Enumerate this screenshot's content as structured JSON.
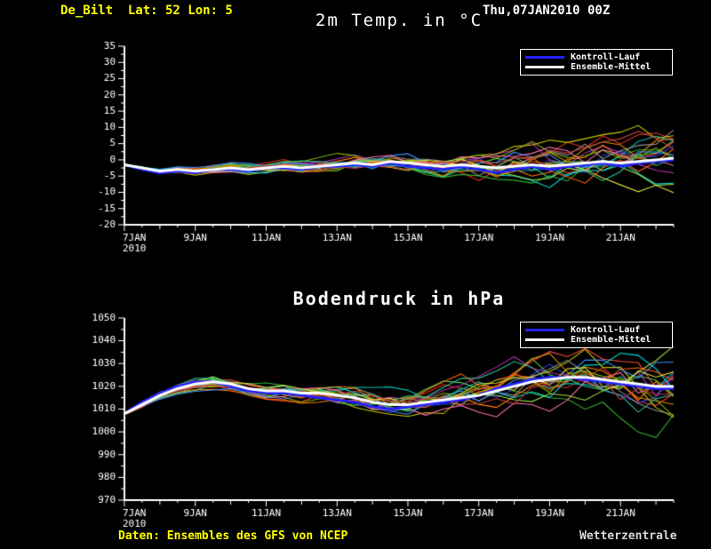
{
  "header": {
    "station": "De_Bilt  Lat: 52 Lon: 5",
    "run": "Thu,07JAN2010 00Z"
  },
  "footer": {
    "source": "Daten: Ensembles des GFS von NCEP",
    "brand": "Wetterzentrale"
  },
  "legend": {
    "control": "Kontroll-Lauf",
    "mean": "Ensemble-Mittel"
  },
  "colors": {
    "background": "#000000",
    "axis": "#ffffff",
    "header_accent": "#ffff00",
    "control": "#2222ff",
    "mean": "#ffffff",
    "members": [
      "#e03020",
      "#30b030",
      "#3040e0",
      "#00b8b8",
      "#b030b0",
      "#c8c800",
      "#ff8000",
      "#909090",
      "#50d050",
      "#ff5040",
      "#4090ff",
      "#00e0e0",
      "#d09000",
      "#80b000",
      "#ff70b0",
      "#a0e040",
      "#ff6000",
      "#30c090",
      "#d8d840",
      "#c04040"
    ]
  },
  "chart_data": [
    {
      "type": "line",
      "title": "2m Temp. in °C",
      "ylim": [
        -20,
        35
      ],
      "ytick": 5,
      "x_max_days": 15.5,
      "x_step_days": 0.5,
      "x_tick_days": [
        0,
        2,
        4,
        6,
        8,
        10,
        12,
        14
      ],
      "x_tick_labels": [
        "7JAN",
        "9JAN",
        "11JAN",
        "13JAN",
        "15JAN",
        "17JAN",
        "19JAN",
        "21JAN"
      ],
      "x_sub_label": "2010",
      "members": 20,
      "seed": 20100107,
      "series": [
        {
          "name": "Ensemble-Mittel",
          "values": [
            -1.5,
            -2.5,
            -3.5,
            -3,
            -3.5,
            -3,
            -2.5,
            -3,
            -2.5,
            -2,
            -2.5,
            -2,
            -1.5,
            -1,
            -1.5,
            -0.5,
            -1,
            -1.5,
            -2,
            -1.5,
            -2,
            -2.5,
            -2,
            -1.5,
            -2,
            -1.5,
            -1,
            -0.5,
            -1,
            -0.5,
            0,
            0.5
          ]
        },
        {
          "name": "Kontroll-Lauf",
          "values": [
            -1.5,
            -3,
            -4,
            -3.5,
            -4,
            -3,
            -3,
            -3.5,
            -2.5,
            -2.5,
            -3,
            -2,
            -2,
            -1.5,
            -2,
            -1,
            -2,
            -2.5,
            -3,
            -2,
            -3,
            -4,
            -3,
            -2,
            -3,
            -2,
            -1.5,
            -1,
            -2,
            -1,
            -0.5,
            0
          ]
        }
      ],
      "spread": [
        0.3,
        0.5,
        0.7,
        0.9,
        1.0,
        1.1,
        1.2,
        1.3,
        1.4,
        1.5,
        1.7,
        1.9,
        2.1,
        2.3,
        2.5,
        2.7,
        2.9,
        3.1,
        3.3,
        3.5,
        3.8,
        4.1,
        4.4,
        4.7,
        5.0,
        5.3,
        5.6,
        5.9,
        6.2,
        6.5,
        6.8,
        7.0
      ]
    },
    {
      "type": "line",
      "title": "Bodendruck in hPa",
      "ylim": [
        970,
        1050
      ],
      "ytick": 10,
      "x_max_days": 15.5,
      "x_step_days": 0.5,
      "x_tick_days": [
        0,
        2,
        4,
        6,
        8,
        10,
        12,
        14
      ],
      "x_tick_labels": [
        "7JAN",
        "9JAN",
        "11JAN",
        "13JAN",
        "15JAN",
        "17JAN",
        "19JAN",
        "21JAN"
      ],
      "x_sub_label": "2010",
      "members": 20,
      "seed": 77441,
      "series": [
        {
          "name": "Ensemble-Mittel",
          "values": [
            1008,
            1012,
            1016,
            1019,
            1021,
            1022,
            1021,
            1019,
            1018,
            1018,
            1017,
            1017,
            1016,
            1015,
            1013,
            1012,
            1012,
            1013,
            1014,
            1015,
            1016,
            1018,
            1020,
            1022,
            1023,
            1024,
            1024,
            1023,
            1022,
            1021,
            1020,
            1020
          ]
        },
        {
          "name": "Kontroll-Lauf",
          "values": [
            1008,
            1013,
            1017,
            1020,
            1022,
            1022,
            1020,
            1018,
            1017,
            1017,
            1016,
            1015,
            1014,
            1013,
            1011,
            1010,
            1011,
            1012,
            1013,
            1014,
            1016,
            1019,
            1021,
            1023,
            1024,
            1024,
            1023,
            1022,
            1021,
            1020,
            1019,
            1019
          ]
        }
      ],
      "spread": [
        0.8,
        1.2,
        1.6,
        2,
        2,
        2.2,
        2.4,
        2.6,
        2.8,
        3,
        3.2,
        3.4,
        3.8,
        4.2,
        4.6,
        5,
        5.5,
        6,
        6.5,
        7,
        7.5,
        8,
        8.5,
        9,
        9.5,
        10,
        10.5,
        11,
        11.5,
        12,
        12.5,
        13
      ]
    }
  ]
}
